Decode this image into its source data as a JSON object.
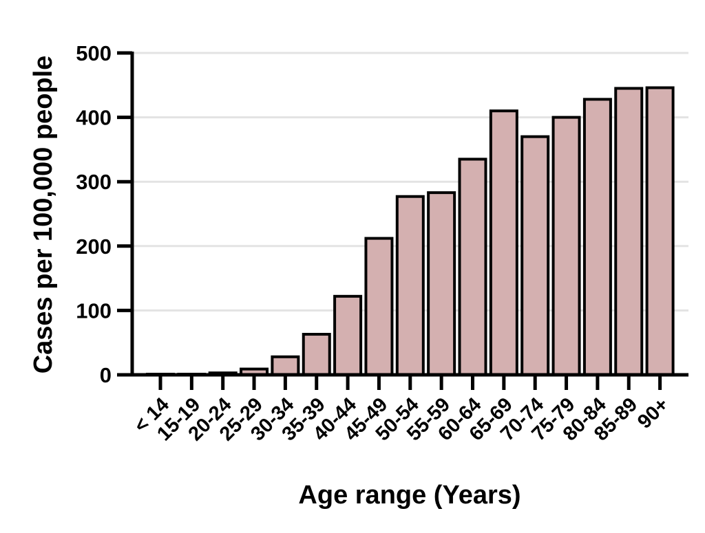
{
  "chart_data": {
    "type": "bar",
    "title": "",
    "xlabel": "Age range (Years)",
    "ylabel": "Cases per 100,000 people",
    "ylim": [
      0,
      500
    ],
    "yticks": [
      0,
      100,
      200,
      300,
      400,
      500
    ],
    "grid": true,
    "categories": [
      "< 14",
      "15-19",
      "20-24",
      "25-29",
      "30-34",
      "35-39",
      "40-44",
      "45-49",
      "50-54",
      "55-59",
      "60-64",
      "65-69",
      "70-74",
      "75-79",
      "80-84",
      "85-89",
      "90+"
    ],
    "values": [
      1,
      1,
      3,
      9,
      28,
      63,
      122,
      212,
      277,
      283,
      335,
      410,
      370,
      400,
      428,
      445,
      446
    ],
    "bar_color": "#d4b0b0",
    "bar_edge_color": "#000000",
    "grid_color": "#e3e3e3"
  }
}
